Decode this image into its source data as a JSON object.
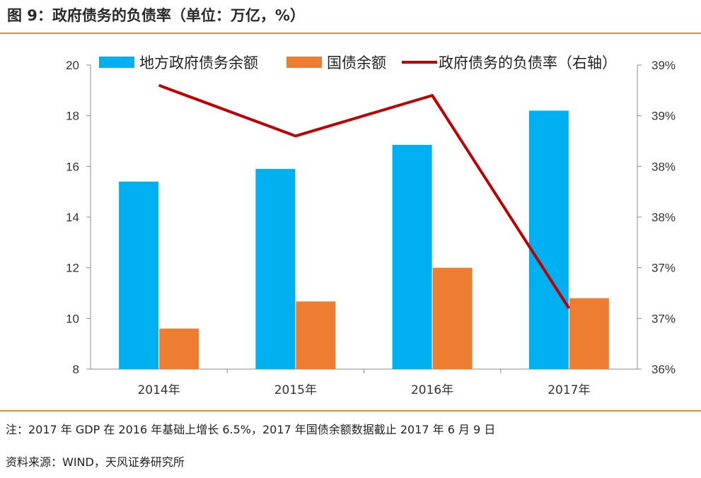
{
  "header": {
    "title": "图 9：政府债务的负债率（单位：万亿，%）"
  },
  "footer": {
    "note": "注：2017 年 GDP 在 2016 年基础上增长 6.5%，2017 年国债余额数据截止 2017 年 6 月 9 日",
    "source": "资料来源：WIND，天风证券研究所"
  },
  "colors": {
    "local_debt": "#00b0f0",
    "treasury": "#ed7d31",
    "ratio_line": "#c00000",
    "rule": "#e88a3a"
  },
  "chart_data": {
    "type": "bar",
    "categories": [
      "2014年",
      "2015年",
      "2016年",
      "2017年"
    ],
    "series": [
      {
        "name": "地方政府债务余额",
        "kind": "bar",
        "axis": "left",
        "values": [
          15.4,
          15.9,
          16.85,
          18.2
        ]
      },
      {
        "name": "国债余额",
        "kind": "bar",
        "axis": "left",
        "values": [
          9.6,
          10.67,
          12.0,
          10.8
        ]
      },
      {
        "name": "政府债务的负债率（右轴）",
        "kind": "line",
        "axis": "right",
        "values": [
          38.8,
          38.3,
          38.7,
          36.6
        ]
      }
    ],
    "ylim_left": [
      8,
      20
    ],
    "yticks_left": [
      8,
      10,
      12,
      14,
      16,
      18,
      20
    ],
    "ylim_right": [
      36,
      39
    ],
    "yticks_right_labels": [
      "36%",
      "37%",
      "37%",
      "38%",
      "38%",
      "39%",
      "39%"
    ],
    "legend_position": "top",
    "grid": false
  }
}
